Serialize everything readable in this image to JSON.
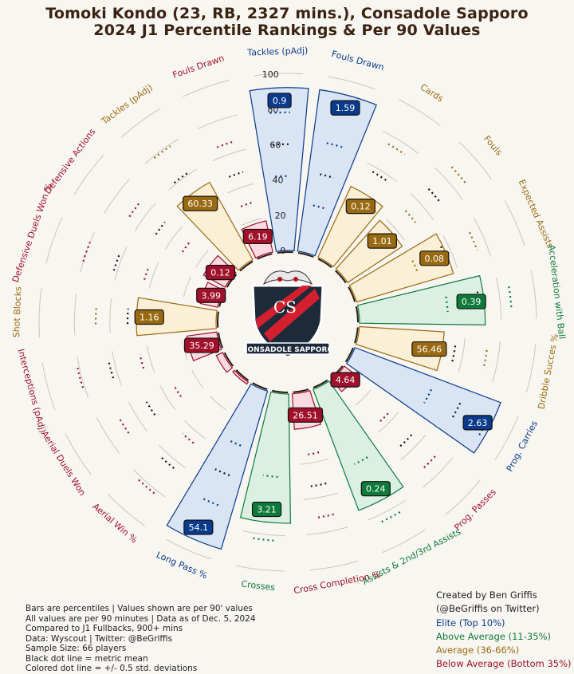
{
  "header": {
    "title_line1": "Tomoki Kondo (23, RB, 2327 mins.), Consadole Sapporo",
    "title_line2": "2024 J1 Percentile Rankings & Per 90 Values"
  },
  "logo": {
    "club_text": "CONSADOLE SAPPORO",
    "monogram": "CS"
  },
  "footer": {
    "notes": [
      "Bars are percentiles | Values shown are per 90' values",
      "All values are per 90 minutes | Data as of Dec. 5, 2024",
      "Compared to J1 Fullbacks, 900+ mins",
      "Data: Wyscout | Twitter: @BeGriffis",
      "Sample Size: 66 players",
      "Black dot line = metric mean",
      "Colored dot line = +/- 0.5 std. deviations"
    ],
    "credit": [
      "Created by Ben Griffis",
      "(@BeGriffis on Twitter)"
    ]
  },
  "legend": [
    {
      "label": "Elite (Top 10%)",
      "color": "#0a3a8c"
    },
    {
      "label": "Above Average (11-35%)",
      "color": "#0e7a3a"
    },
    {
      "label": "Average (36-66%)",
      "color": "#9a6a12"
    },
    {
      "label": "Below Average (Bottom 35%)",
      "color": "#a0102a"
    }
  ],
  "chart_data": {
    "type": "radial_bar",
    "radial_axis_ticks": [
      0,
      20,
      40,
      60,
      80,
      100
    ],
    "range": [
      0,
      100
    ],
    "metrics": [
      {
        "name": "Fouls Drawn",
        "percentile": 92,
        "value": "1.59",
        "tier": "elite"
      },
      {
        "name": "Cards",
        "percentile": 44,
        "value": "0.12",
        "tier": "average"
      },
      {
        "name": "Fouls",
        "percentile": 37,
        "value": "1.01",
        "tier": "average"
      },
      {
        "name": "Expected Assists",
        "percentile": 57,
        "value": "0.08",
        "tier": "average"
      },
      {
        "name": "Acceleration with Ball",
        "percentile": 71,
        "value": "0.39",
        "tier": "above"
      },
      {
        "name": "Dribble Succes %",
        "percentile": 48,
        "value": "56.46",
        "tier": "average"
      },
      {
        "name": "Prog. Carries",
        "percentile": 88,
        "value": "2.63",
        "tier": "elite"
      },
      {
        "name": "Prog. Passes",
        "percentile": 9,
        "value": "4.64",
        "tier": "below"
      },
      {
        "name": "Assists & 2nd/3rd Assists",
        "percentile": 73,
        "value": "0.24",
        "tier": "above"
      },
      {
        "name": "Cross Completion %",
        "percentile": 20,
        "value": "26.51",
        "tier": "below"
      },
      {
        "name": "Crosses",
        "percentile": 73,
        "value": "3.21",
        "tier": "above"
      },
      {
        "name": "Long Pass %",
        "percentile": 93,
        "value": "54.1",
        "tier": "elite"
      },
      {
        "name": "Aerial Win %",
        "percentile": 0,
        "value": "",
        "tier": "below"
      },
      {
        "name": "Aerial Duels Won",
        "percentile": 4,
        "value": "",
        "tier": "below"
      },
      {
        "name": "Interceptions (pAdj)",
        "percentile": 17,
        "value": "35.29",
        "tier": "below"
      },
      {
        "name": "Shot Blocks",
        "percentile": 45,
        "value": "1.16",
        "tier": "average"
      },
      {
        "name": "Defensive Duels Won %",
        "percentile": 10,
        "value": "3.99",
        "tier": "below"
      },
      {
        "name": "Defensive Actions",
        "percentile": 14,
        "value": "0.12",
        "tier": "below"
      },
      {
        "name": "Tackles (pAdj)",
        "percentile": 50,
        "value": "60.33",
        "tier": "average"
      },
      {
        "name": "Fouls Drawn",
        "percentile": 18,
        "value": "6.19",
        "tier": "below"
      },
      {
        "name": "Tackles (pAdj)",
        "percentile": 92,
        "value": "0.9",
        "tier": "elite"
      }
    ],
    "colors": {
      "elite": "#0a3a8c",
      "above": "#0e7a3a",
      "average": "#9a6a12",
      "below": "#a0102a",
      "elite_fill": "#d9e4f5",
      "above_fill": "#dcefe3",
      "average_fill": "#fbf0d6",
      "below_fill": "#fbdbe1"
    }
  }
}
